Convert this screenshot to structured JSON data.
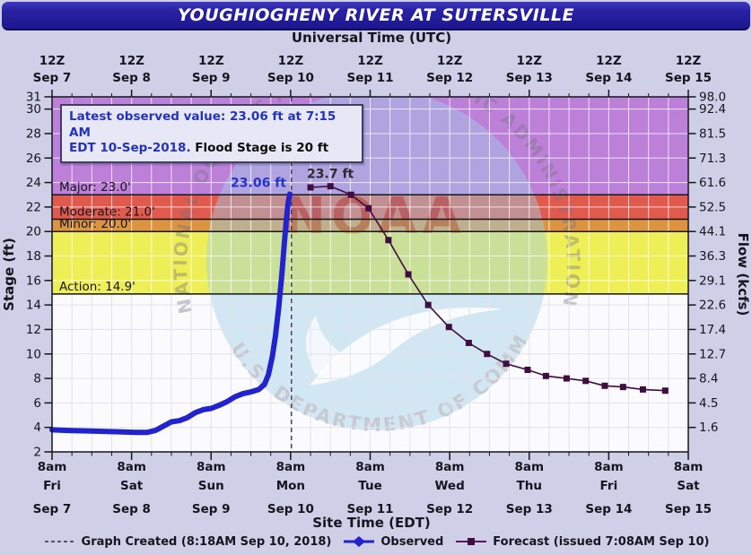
{
  "header": {
    "title": "YOUGHIOGHENY RIVER AT SUTERSVILLE",
    "top_axis_title": "Universal Time (UTC)",
    "bottom_axis_title": "Site Time (EDT)"
  },
  "info_box": {
    "line1": "Latest observed value: 23.06 ft at 7:15 AM",
    "line2_blue": "EDT 10-Sep-2018.",
    "line2_black": "Flood Stage is 20 ft"
  },
  "legend": {
    "created": "Graph Created (8:18AM Sep 10, 2018)",
    "observed": "Observed",
    "forecast": "Forecast (issued 7:08AM Sep 10)"
  },
  "watermark": {
    "top_arc": "NATIONAL OCEANIC AND ATMOSPHERIC ADMINISTRATION",
    "bottom_arc": "U.S. DEPARTMENT OF COMMERCE",
    "center_text": "NOAA"
  },
  "colors": {
    "title_bar": "#1b1690",
    "page_background": "#cfcfe8",
    "plot_background": "#fbfbfd",
    "grid_light": "#ffffff",
    "grid_gray": "#e2e2ec",
    "axis_text": "#15151f"
  },
  "chart_data": {
    "type": "line",
    "title": "YOUGHIOGHENY RIVER AT SUTERSVILLE",
    "x_axis": {
      "top_label": "Universal Time (UTC)",
      "bottom_label": "Site Time (EDT)",
      "range_days": [
        0,
        8
      ],
      "minor_tick_hours": 6,
      "ticks": [
        {
          "utc": "12Z",
          "date": "Sep 7",
          "site_time": "8am",
          "weekday": "Fri"
        },
        {
          "utc": "12Z",
          "date": "Sep 8",
          "site_time": "8am",
          "weekday": "Sat"
        },
        {
          "utc": "12Z",
          "date": "Sep 9",
          "site_time": "8am",
          "weekday": "Sun"
        },
        {
          "utc": "12Z",
          "date": "Sep 10",
          "site_time": "8am",
          "weekday": "Mon"
        },
        {
          "utc": "12Z",
          "date": "Sep 11",
          "site_time": "8am",
          "weekday": "Tue"
        },
        {
          "utc": "12Z",
          "date": "Sep 12",
          "site_time": "8am",
          "weekday": "Wed"
        },
        {
          "utc": "12Z",
          "date": "Sep 13",
          "site_time": "8am",
          "weekday": "Thu"
        },
        {
          "utc": "12Z",
          "date": "Sep 14",
          "site_time": "8am",
          "weekday": "Fri"
        },
        {
          "utc": "12Z",
          "date": "Sep 15",
          "site_time": "8am",
          "weekday": "Sat"
        }
      ]
    },
    "y_left": {
      "label": "Stage (ft)",
      "range": [
        2,
        31
      ],
      "ticks": [
        31,
        30,
        28,
        26,
        24,
        22,
        20,
        18,
        16,
        14,
        12,
        10,
        8,
        6,
        4,
        2
      ]
    },
    "y_right": {
      "label": "Flow (kcfs)",
      "ticks": [
        {
          "stage": 31,
          "flow": "98.0"
        },
        {
          "stage": 30,
          "flow": "92.4"
        },
        {
          "stage": 28,
          "flow": "81.5"
        },
        {
          "stage": 26,
          "flow": "71.3"
        },
        {
          "stage": 24,
          "flow": "61.6"
        },
        {
          "stage": 22,
          "flow": "52.5"
        },
        {
          "stage": 20,
          "flow": "44.1"
        },
        {
          "stage": 18,
          "flow": "36.3"
        },
        {
          "stage": 16,
          "flow": "29.1"
        },
        {
          "stage": 14,
          "flow": "22.6"
        },
        {
          "stage": 12,
          "flow": "17.4"
        },
        {
          "stage": 10,
          "flow": "12.7"
        },
        {
          "stage": 8,
          "flow": "8.4"
        },
        {
          "stage": 6,
          "flow": "4.5"
        },
        {
          "stage": 4,
          "flow": "1.6"
        }
      ]
    },
    "flood_zones": [
      {
        "name": "major",
        "label": "Major: 23.0'",
        "stage": 23,
        "band": [
          23,
          31
        ],
        "color": "#bd80d9"
      },
      {
        "name": "moderate",
        "label": "Moderate: 21.0'",
        "stage": 21,
        "band": [
          21,
          23
        ],
        "color": "#e05a4e"
      },
      {
        "name": "minor",
        "label": "Minor: 20.0'",
        "stage": 20,
        "band": [
          20,
          21
        ],
        "color": "#dc9440"
      },
      {
        "name": "action",
        "label": "Action: 14.9'",
        "stage": 14.9,
        "band": [
          14.9,
          20
        ],
        "color": "#eeee57"
      },
      {
        "name": "normal",
        "label": "",
        "stage": 2,
        "band": [
          2,
          14.9
        ],
        "color": "#fbfbfd"
      }
    ],
    "created_line": {
      "t_days": 3.01,
      "label": "Graph Created (8:18AM Sep 10, 2018)"
    },
    "series": [
      {
        "name": "Observed",
        "color": "#2222cf",
        "marker": "diamond",
        "line_width": 6,
        "annotation": "23.06 ft",
        "annotation_color": "#2333cc",
        "points": [
          [
            0.0,
            3.8
          ],
          [
            0.2,
            3.75
          ],
          [
            0.5,
            3.7
          ],
          [
            0.8,
            3.65
          ],
          [
            1.05,
            3.6
          ],
          [
            1.2,
            3.6
          ],
          [
            1.3,
            3.75
          ],
          [
            1.4,
            4.1
          ],
          [
            1.5,
            4.45
          ],
          [
            1.6,
            4.55
          ],
          [
            1.7,
            4.8
          ],
          [
            1.8,
            5.2
          ],
          [
            1.9,
            5.45
          ],
          [
            2.0,
            5.55
          ],
          [
            2.1,
            5.8
          ],
          [
            2.2,
            6.1
          ],
          [
            2.3,
            6.5
          ],
          [
            2.4,
            6.75
          ],
          [
            2.5,
            6.9
          ],
          [
            2.6,
            7.1
          ],
          [
            2.67,
            7.5
          ],
          [
            2.72,
            8.3
          ],
          [
            2.77,
            9.8
          ],
          [
            2.81,
            11.5
          ],
          [
            2.85,
            13.8
          ],
          [
            2.89,
            16.5
          ],
          [
            2.92,
            19.0
          ],
          [
            2.95,
            21.2
          ],
          [
            2.97,
            22.4
          ],
          [
            2.99,
            23.06
          ]
        ]
      },
      {
        "name": "Forecast",
        "color": "#3f0d3f",
        "marker": "square",
        "line_width": 1.6,
        "annotation": "23.7 ft",
        "annotation_color": "#2b2b33",
        "points": [
          [
            3.25,
            23.6
          ],
          [
            3.5,
            23.7
          ],
          [
            3.76,
            23.0
          ],
          [
            3.98,
            21.9
          ],
          [
            4.23,
            19.3
          ],
          [
            4.48,
            16.5
          ],
          [
            4.73,
            14.0
          ],
          [
            4.99,
            12.2
          ],
          [
            5.24,
            10.9
          ],
          [
            5.47,
            10.0
          ],
          [
            5.71,
            9.2
          ],
          [
            5.98,
            8.7
          ],
          [
            6.21,
            8.2
          ],
          [
            6.47,
            8.0
          ],
          [
            6.71,
            7.8
          ],
          [
            6.95,
            7.4
          ],
          [
            7.18,
            7.3
          ],
          [
            7.43,
            7.1
          ],
          [
            7.71,
            7.0
          ]
        ]
      }
    ]
  }
}
